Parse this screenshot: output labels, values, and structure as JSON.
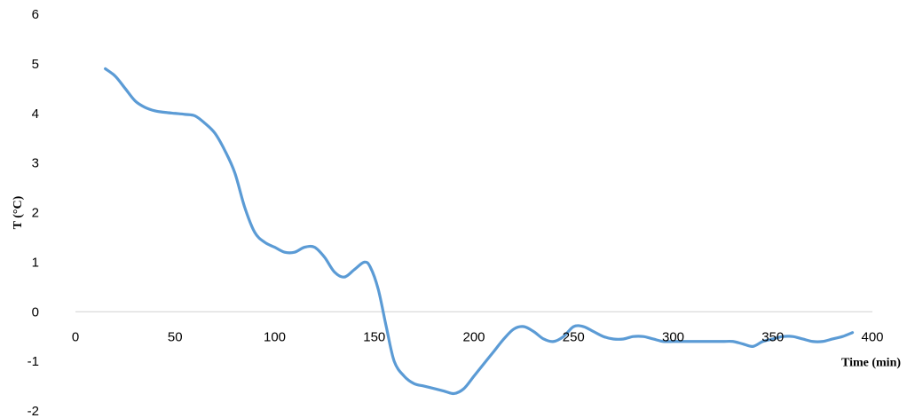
{
  "chart_data": {
    "type": "line",
    "title": "",
    "xlabel": "Time (min)",
    "ylabel": "T (°C)",
    "xlim": [
      0,
      400
    ],
    "ylim": [
      -2,
      6
    ],
    "x_ticks": [
      "0",
      "50",
      "100",
      "150",
      "200",
      "250",
      "300",
      "350",
      "400"
    ],
    "y_ticks": [
      "6",
      "5",
      "4",
      "3",
      "2",
      "1",
      "0",
      "-1",
      "-2"
    ],
    "grid": false,
    "legend": "none",
    "series": [
      {
        "color": "#5b9bd5",
        "x": [
          15,
          20,
          25,
          30,
          35,
          40,
          45,
          50,
          55,
          60,
          65,
          70,
          75,
          80,
          85,
          90,
          95,
          100,
          105,
          110,
          115,
          120,
          125,
          130,
          135,
          140,
          145,
          148,
          152,
          156,
          160,
          165,
          170,
          175,
          180,
          185,
          190,
          195,
          200,
          205,
          210,
          215,
          220,
          225,
          230,
          235,
          240,
          245,
          250,
          255,
          260,
          265,
          270,
          275,
          280,
          285,
          290,
          295,
          300,
          305,
          310,
          315,
          320,
          325,
          330,
          335,
          340,
          345,
          350,
          355,
          360,
          365,
          370,
          375,
          380,
          385,
          390
        ],
        "y": [
          4.9,
          4.75,
          4.5,
          4.25,
          4.12,
          4.05,
          4.02,
          4.0,
          3.98,
          3.95,
          3.8,
          3.6,
          3.25,
          2.8,
          2.1,
          1.6,
          1.4,
          1.3,
          1.2,
          1.2,
          1.3,
          1.3,
          1.1,
          0.8,
          0.7,
          0.85,
          1.0,
          0.9,
          0.45,
          -0.3,
          -1.0,
          -1.3,
          -1.45,
          -1.5,
          -1.55,
          -1.6,
          -1.65,
          -1.55,
          -1.3,
          -1.05,
          -0.8,
          -0.55,
          -0.35,
          -0.3,
          -0.4,
          -0.55,
          -0.6,
          -0.5,
          -0.3,
          -0.3,
          -0.4,
          -0.5,
          -0.55,
          -0.55,
          -0.5,
          -0.5,
          -0.55,
          -0.6,
          -0.6,
          -0.6,
          -0.6,
          -0.6,
          -0.6,
          -0.6,
          -0.6,
          -0.65,
          -0.7,
          -0.6,
          -0.55,
          -0.5,
          -0.5,
          -0.55,
          -0.6,
          -0.6,
          -0.55,
          -0.5,
          -0.42
        ]
      }
    ]
  }
}
